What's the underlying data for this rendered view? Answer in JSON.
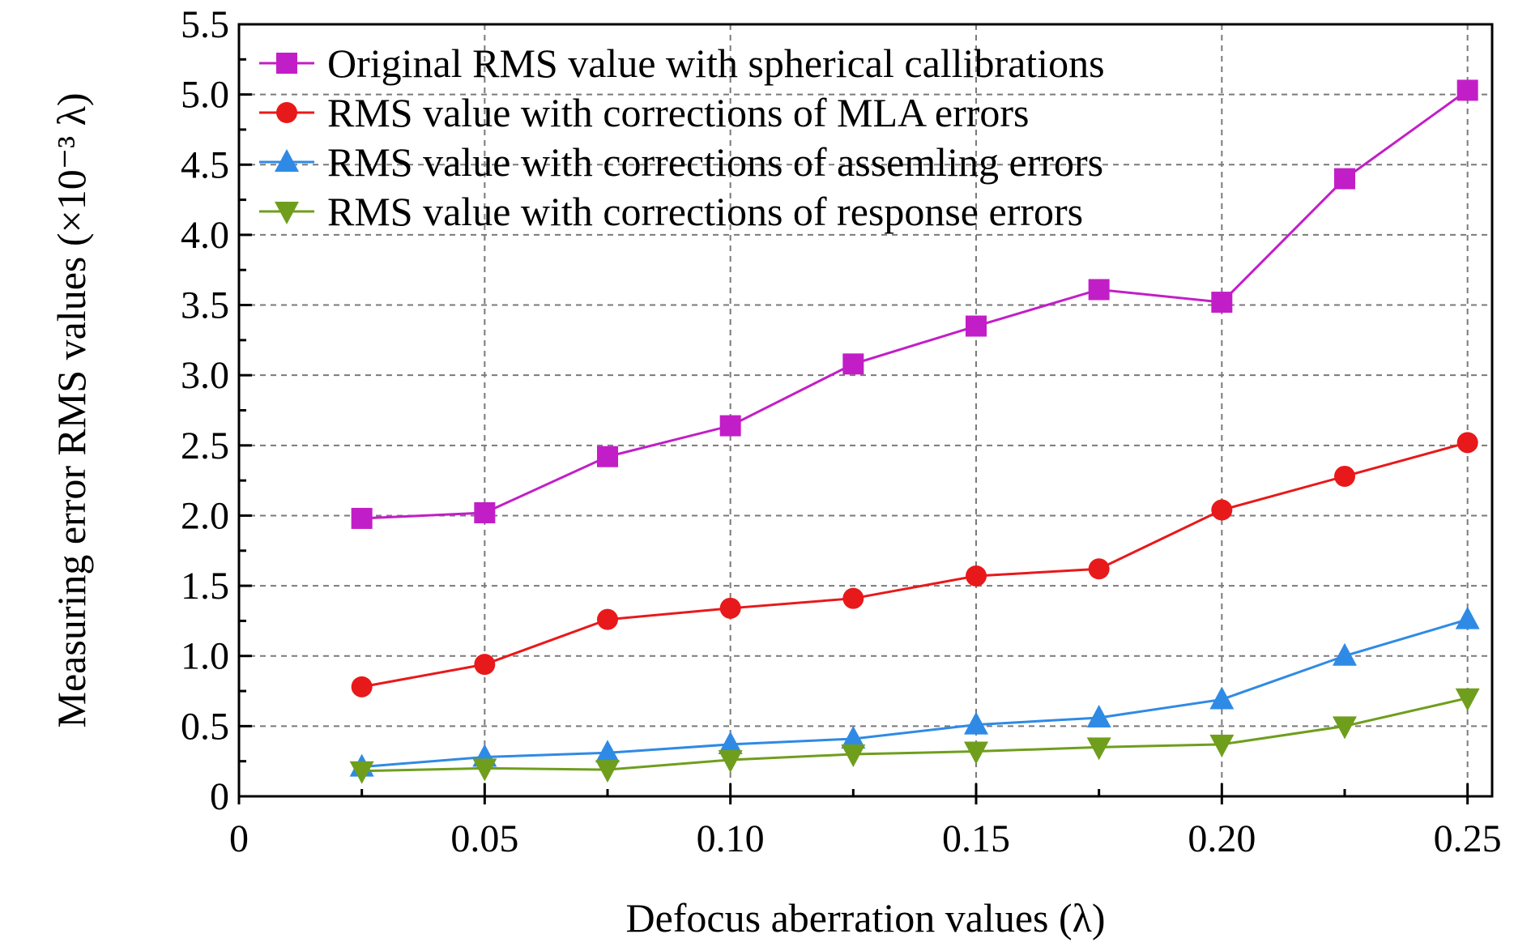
{
  "chart_data": {
    "type": "line",
    "x": [
      0.025,
      0.05,
      0.075,
      0.1,
      0.125,
      0.15,
      0.175,
      0.2,
      0.225,
      0.25
    ],
    "xlim": [
      0,
      0.255
    ],
    "ylim": [
      0,
      5.5
    ],
    "xticks": [
      0,
      0.05,
      0.1,
      0.15,
      0.2,
      0.25
    ],
    "xtick_labels": [
      "0",
      "0.05",
      "0.10",
      "0.15",
      "0.20",
      "0.25"
    ],
    "yticks": [
      0,
      0.5,
      1.0,
      1.5,
      2.0,
      2.5,
      3.0,
      3.5,
      4.0,
      4.5,
      5.0,
      5.5
    ],
    "ytick_labels": [
      "0",
      "0.5",
      "1.0",
      "1.5",
      "2.0",
      "2.5",
      "3.0",
      "3.5",
      "4.0",
      "4.5",
      "5.0",
      "5.5"
    ],
    "xlabel": "Defocus aberration values (λ)",
    "ylabel": "Measuring error RMS values (×10⁻³ λ)",
    "grid": true,
    "legend_position": "top-left",
    "series": [
      {
        "name": "Original RMS value with spherical callibrations",
        "color": "#c21ec7",
        "marker": "square",
        "values": [
          1.98,
          2.02,
          2.42,
          2.64,
          3.08,
          3.35,
          3.61,
          3.52,
          4.4,
          5.03
        ]
      },
      {
        "name": "RMS value with corrections of MLA errors",
        "color": "#e8191a",
        "marker": "circle",
        "values": [
          0.78,
          0.94,
          1.26,
          1.34,
          1.41,
          1.57,
          1.62,
          2.04,
          2.28,
          2.52
        ]
      },
      {
        "name": "RMS value with corrections of assemling errors",
        "color": "#2f8ae5",
        "marker": "triangle-up",
        "values": [
          0.21,
          0.28,
          0.31,
          0.37,
          0.41,
          0.51,
          0.56,
          0.69,
          1.0,
          1.26
        ]
      },
      {
        "name": "RMS value with corrections of response errors",
        "color": "#6f9e1d",
        "marker": "triangle-down",
        "values": [
          0.18,
          0.2,
          0.19,
          0.26,
          0.3,
          0.32,
          0.35,
          0.37,
          0.5,
          0.7
        ]
      }
    ]
  }
}
